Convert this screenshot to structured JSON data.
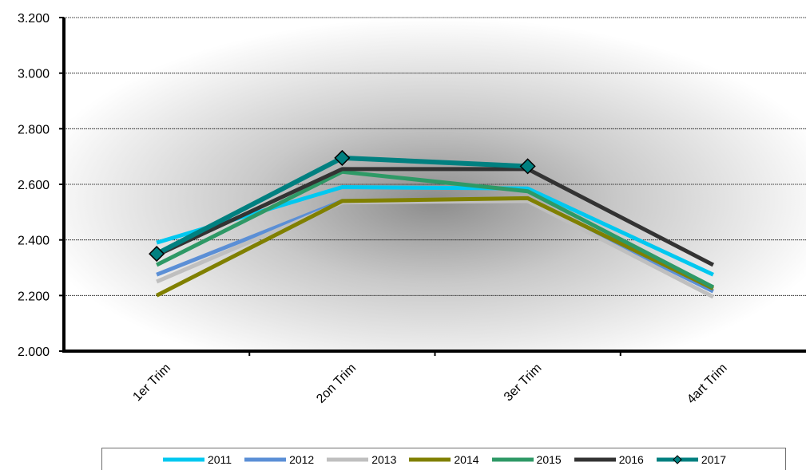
{
  "chart_data": {
    "type": "line",
    "categories": [
      "1er Trim",
      "2on Trim",
      "3er Trim",
      "4art Trim"
    ],
    "ylim": [
      2000,
      3200
    ],
    "yticks": [
      2000,
      2200,
      2400,
      2600,
      2800,
      3000,
      3200
    ],
    "ytick_labels": [
      "2.000",
      "2.200",
      "2.400",
      "2.600",
      "2.800",
      "3.000",
      "3.200"
    ],
    "grid": true,
    "legend_position": "bottom",
    "series": [
      {
        "name": "2011",
        "color": "#00c8f0",
        "values": [
          2390,
          2590,
          2585,
          2275
        ]
      },
      {
        "name": "2012",
        "color": "#5b8fd6",
        "values": [
          2275,
          2540,
          2545,
          2215
        ]
      },
      {
        "name": "2013",
        "color": "#bfbfbf",
        "values": [
          2250,
          2535,
          2540,
          2195
        ]
      },
      {
        "name": "2014",
        "color": "#808000",
        "values": [
          2200,
          2540,
          2550,
          2225
        ]
      },
      {
        "name": "2015",
        "color": "#2e9966",
        "values": [
          2310,
          2645,
          2575,
          2230
        ]
      },
      {
        "name": "2016",
        "color": "#333333",
        "values": [
          2345,
          2655,
          2655,
          2310
        ]
      },
      {
        "name": "2017",
        "color": "#008080",
        "values": [
          2350,
          2695,
          2665,
          null
        ],
        "marker": "diamond"
      }
    ]
  }
}
